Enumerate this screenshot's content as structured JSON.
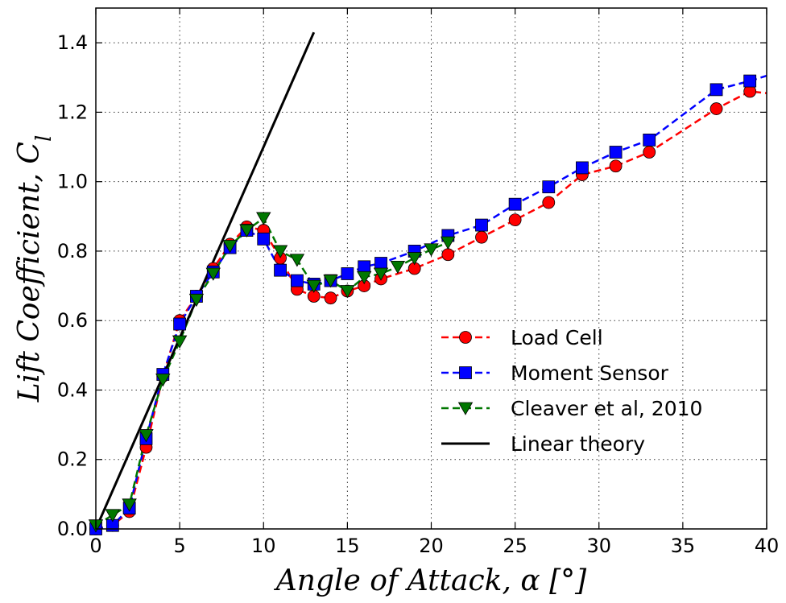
{
  "chart_data": {
    "type": "line",
    "title": "",
    "xlabel": "Angle of Attack, α [°]",
    "ylabel": "Lift Coefficient, C",
    "ylabel_subscript": "l",
    "xlim": [
      0,
      40
    ],
    "ylim": [
      0,
      1.5
    ],
    "xticks": [
      0,
      5,
      10,
      15,
      20,
      25,
      30,
      35,
      40
    ],
    "yticks": [
      0.0,
      0.2,
      0.4,
      0.6,
      0.8,
      1.0,
      1.2,
      1.4
    ],
    "xtick_labels": [
      "0",
      "5",
      "10",
      "15",
      "20",
      "25",
      "30",
      "35",
      "40"
    ],
    "ytick_labels": [
      "0.0",
      "0.2",
      "0.4",
      "0.6",
      "0.8",
      "1.0",
      "1.2",
      "1.4"
    ],
    "grid": true,
    "legend_position": "lower-right",
    "series": [
      {
        "name": "Load Cell",
        "color": "#ff0000",
        "marker": "circle",
        "linestyle": "dashed",
        "x": [
          0,
          1,
          2,
          3,
          4,
          5,
          6,
          7,
          8,
          9,
          10,
          11,
          12,
          13,
          14,
          15,
          16,
          17,
          19,
          21,
          23,
          25,
          27,
          29,
          31,
          33,
          37,
          39,
          40
        ],
        "y": [
          0.0,
          0.01,
          0.05,
          0.235,
          0.44,
          0.6,
          0.67,
          0.75,
          0.82,
          0.87,
          0.86,
          0.78,
          0.69,
          0.67,
          0.665,
          0.685,
          0.7,
          0.72,
          0.75,
          0.79,
          0.84,
          0.89,
          0.94,
          1.02,
          1.045,
          1.085,
          1.21,
          1.26,
          1.255
        ]
      },
      {
        "name": "Moment Sensor",
        "color": "#0000ff",
        "marker": "square",
        "linestyle": "dashed",
        "x": [
          0,
          1,
          2,
          3,
          4,
          5,
          6,
          7,
          8,
          9,
          10,
          11,
          12,
          13,
          14,
          15,
          16,
          17,
          19,
          21,
          23,
          25,
          27,
          29,
          31,
          33,
          37,
          39,
          40
        ],
        "y": [
          0.0,
          0.01,
          0.06,
          0.26,
          0.445,
          0.59,
          0.67,
          0.74,
          0.81,
          0.86,
          0.835,
          0.745,
          0.715,
          0.705,
          0.715,
          0.735,
          0.755,
          0.765,
          0.8,
          0.845,
          0.875,
          0.935,
          0.985,
          1.04,
          1.085,
          1.12,
          1.265,
          1.29,
          1.305
        ]
      },
      {
        "name": "Cleaver et al, 2010",
        "color": "#007700",
        "marker": "triangle-down",
        "linestyle": "dashed",
        "x": [
          0,
          1,
          2,
          3,
          4,
          5,
          6,
          7,
          8,
          9,
          10,
          11,
          12,
          13,
          14,
          15,
          16,
          17,
          18,
          19,
          20,
          21
        ],
        "y": [
          0.01,
          0.04,
          0.07,
          0.27,
          0.43,
          0.54,
          0.66,
          0.735,
          0.815,
          0.86,
          0.895,
          0.8,
          0.775,
          0.7,
          0.715,
          0.685,
          0.725,
          0.735,
          0.755,
          0.78,
          0.805,
          0.825
        ]
      },
      {
        "name": "Linear theory",
        "color": "#000000",
        "marker": "none",
        "linestyle": "solid",
        "x": [
          0,
          13
        ],
        "y": [
          0.0,
          1.43
        ]
      }
    ]
  }
}
